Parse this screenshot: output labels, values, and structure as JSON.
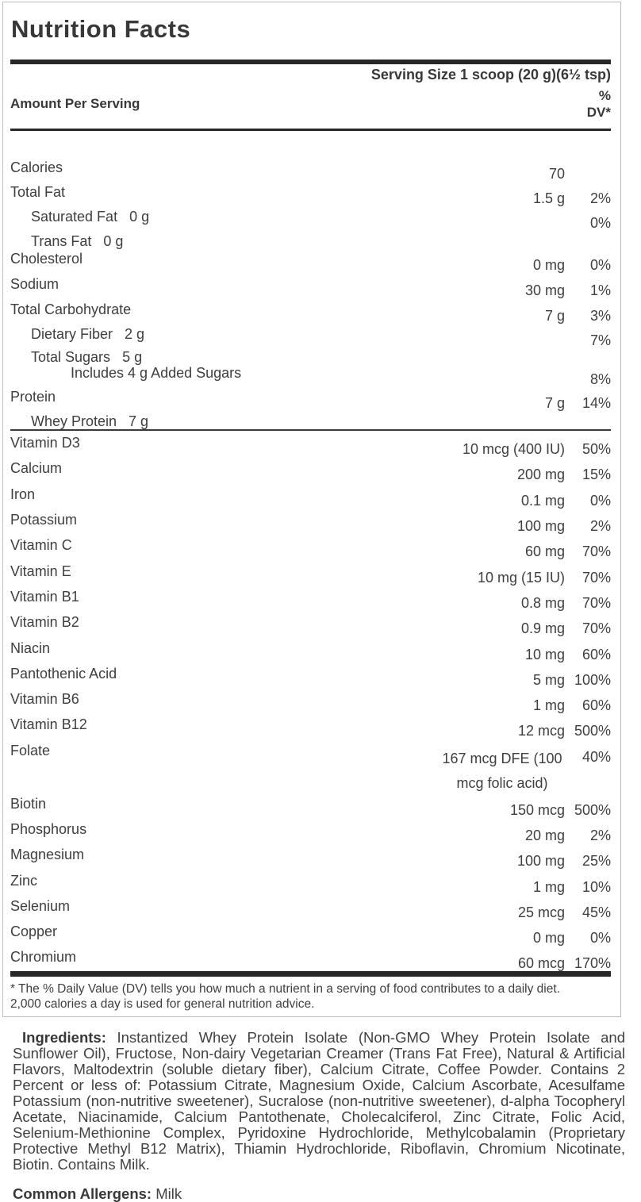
{
  "label": {
    "title": "Nutrition Facts",
    "serving_size": "Serving Size 1 scoop (20 g)(6½ tsp)",
    "amount_per_serving": "Amount Per Serving",
    "dv_header": [
      "%",
      "DV*"
    ],
    "main_rows": [
      {
        "name": "Calories",
        "amount": "70",
        "dv": "",
        "indent": 0
      },
      {
        "name": "Total Fat",
        "amount": "1.5 g",
        "dv": "2%",
        "indent": 0
      },
      {
        "name": "Saturated Fat",
        "inline": "0 g",
        "amount": "",
        "dv": "0%",
        "indent": 1
      },
      {
        "name": "Trans Fat",
        "inline": "0 g",
        "amount": "",
        "dv": "",
        "indent": 1
      },
      {
        "name": "Cholesterol",
        "amount": "0 mg",
        "dv": "0%",
        "indent": 0
      },
      {
        "name": "Sodium",
        "amount": "30 mg",
        "dv": "1%",
        "indent": 0
      },
      {
        "name": "Total Carbohydrate",
        "amount": "7 g",
        "dv": "3%",
        "indent": 0
      },
      {
        "name": "Dietary Fiber",
        "inline": "2 g",
        "amount": "",
        "dv": "7%",
        "indent": 1
      },
      {
        "name": "Total Sugars",
        "inline": "5 g",
        "amount": "",
        "dv": "",
        "indent": 1
      },
      {
        "name": "Includes 4 g Added Sugars",
        "amount": "",
        "dv": "8%",
        "indent": 2
      },
      {
        "name": "Protein",
        "amount": "7 g",
        "dv": "14%",
        "indent": 0
      },
      {
        "name": "Whey Protein",
        "inline": "7 g",
        "amount": "",
        "dv": "",
        "indent": 1
      }
    ],
    "micro_rows": [
      {
        "name": "Vitamin D3",
        "amount": "10 mcg (400 IU)",
        "dv": "50%",
        "indent": 0
      },
      {
        "name": "Calcium",
        "amount": "200 mg",
        "dv": "15%",
        "indent": 0
      },
      {
        "name": "Iron",
        "amount": "0.1 mg",
        "dv": "0%",
        "indent": 0
      },
      {
        "name": "Potassium",
        "amount": "100 mg",
        "dv": "2%",
        "indent": 0
      },
      {
        "name": "Vitamin C",
        "amount": "60 mg",
        "dv": "70%",
        "indent": 0
      },
      {
        "name": "Vitamin E",
        "amount": "10 mg (15 IU)",
        "dv": "70%",
        "indent": 0
      },
      {
        "name": "Vitamin B1",
        "amount": "0.8 mg",
        "dv": "70%",
        "indent": 0
      },
      {
        "name": "Vitamin B2",
        "amount": "0.9 mg",
        "dv": "70%",
        "indent": 0
      },
      {
        "name": "Niacin",
        "amount": "10 mg",
        "dv": "60%",
        "indent": 0
      },
      {
        "name": "Pantothenic Acid",
        "amount": "5 mg",
        "dv": "100%",
        "indent": 0
      },
      {
        "name": "Vitamin B6",
        "amount": "1 mg",
        "dv": "60%",
        "indent": 0
      },
      {
        "name": "Vitamin B12",
        "amount": "12 mcg",
        "dv": "500%",
        "indent": 0
      },
      {
        "name": "Folate",
        "amount": "167 mcg DFE (100 mcg folic acid)",
        "dv": "40%",
        "indent": 0
      },
      {
        "name": "Biotin",
        "amount": "150 mcg",
        "dv": "500%",
        "indent": 0
      },
      {
        "name": "Phosphorus",
        "amount": "20 mg",
        "dv": "2%",
        "indent": 0
      },
      {
        "name": "Magnesium",
        "amount": "100 mg",
        "dv": "25%",
        "indent": 0
      },
      {
        "name": "Zinc",
        "amount": "1 mg",
        "dv": "10%",
        "indent": 0
      },
      {
        "name": "Selenium",
        "amount": "25 mcg",
        "dv": "45%",
        "indent": 0
      },
      {
        "name": "Copper",
        "amount": "0 mg",
        "dv": "0%",
        "indent": 0
      },
      {
        "name": "Chromium",
        "amount": "60 mcg",
        "dv": "170%",
        "indent": 0
      }
    ],
    "footnote": "* The % Daily Value (DV) tells you how much a nutrient in a serving of food contributes to a daily diet. 2,000 calories a day is used for general nutrition advice."
  },
  "ingredients": {
    "label": "Ingredients:",
    "text": "Instantized Whey Protein Isolate (Non-GMO Whey Protein Isolate and Sunflower Oil), Fructose, Non-dairy Vegetarian Creamer (Trans Fat Free), Natural & Artificial Flavors, Maltodextrin (soluble dietary fiber), Calcium Citrate, Coffee Powder. Contains 2 Percent or less of: Potassium Citrate, Magnesium Oxide, Calcium Ascorbate, Acesulfame Potassium (non-nutritive sweetener), Sucralose (non-nutritive sweetener), d-alpha Tocopheryl Acetate, Niacinamide, Calcium Pantothenate, Cholecalciferol, Zinc Citrate, Folic Acid, Selenium-Methionine Complex, Pyridoxine Hydrochloride, Methylcobalamin (Proprietary Protective Methyl B12 Matrix), Thiamin Hydrochloride, Riboflavin, Chromium Nicotinate, Biotin. Contains Milk."
  },
  "allergens": {
    "label": "Common Allergens:",
    "text": "Milk"
  },
  "colors": {
    "text": "#3e3e3e",
    "bar": "#272727",
    "box_border": "#bdbdbd",
    "background": "#ffffff"
  }
}
